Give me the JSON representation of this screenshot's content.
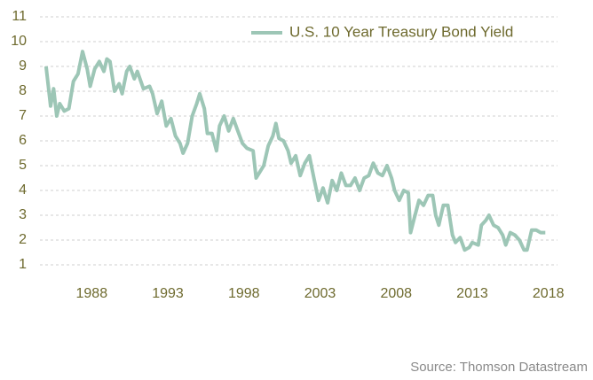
{
  "chart_data": {
    "type": "line",
    "source": "Source:  Thomson Datastream",
    "x": [
      1985.0,
      1985.3,
      1985.5,
      1985.7,
      1985.9,
      1986.2,
      1986.5,
      1986.8,
      1987.1,
      1987.4,
      1987.7,
      1987.9,
      1988.2,
      1988.5,
      1988.8,
      1989.0,
      1989.2,
      1989.5,
      1989.8,
      1990.0,
      1990.3,
      1990.5,
      1990.8,
      1991.0,
      1991.4,
      1991.8,
      1992.0,
      1992.3,
      1992.6,
      1992.9,
      1993.2,
      1993.5,
      1993.8,
      1994.0,
      1994.3,
      1994.6,
      1994.9,
      1995.1,
      1995.4,
      1995.6,
      1995.9,
      1996.2,
      1996.4,
      1996.7,
      1997.0,
      1997.3,
      1997.6,
      1997.9,
      1998.2,
      1998.6,
      1998.8,
      1999.0,
      1999.3,
      1999.6,
      1999.9,
      2000.1,
      2000.3,
      2000.6,
      2000.9,
      2001.1,
      2001.4,
      2001.7,
      2002.0,
      2002.3,
      2002.6,
      2002.9,
      2003.2,
      2003.5,
      2003.8,
      2004.1,
      2004.4,
      2004.7,
      2005.0,
      2005.3,
      2005.6,
      2005.9,
      2006.2,
      2006.5,
      2006.8,
      2007.1,
      2007.4,
      2007.7,
      2007.9,
      2008.2,
      2008.5,
      2008.8,
      2008.95,
      2009.2,
      2009.5,
      2009.8,
      2010.1,
      2010.4,
      2010.6,
      2010.8,
      2011.1,
      2011.4,
      2011.7,
      2011.9,
      2012.2,
      2012.5,
      2012.8,
      2013.0,
      2013.4,
      2013.6,
      2013.9,
      2014.1,
      2014.4,
      2014.7,
      2015.0,
      2015.2,
      2015.5,
      2015.8,
      2016.1,
      2016.4,
      2016.6,
      2016.9,
      2017.2,
      2017.5,
      2017.8
    ],
    "series": [
      {
        "name": "U.S. 10 Year Treasury Bond Yield",
        "color": "#9dc6b6",
        "values": [
          9.0,
          7.4,
          8.1,
          7.0,
          7.5,
          7.2,
          7.3,
          8.4,
          8.7,
          9.6,
          8.9,
          8.2,
          8.9,
          9.2,
          8.8,
          9.3,
          9.2,
          8.0,
          8.3,
          7.9,
          8.8,
          9.0,
          8.5,
          8.8,
          8.1,
          8.2,
          7.9,
          7.1,
          7.6,
          6.6,
          6.9,
          6.2,
          5.9,
          5.5,
          5.9,
          7.0,
          7.5,
          7.9,
          7.3,
          6.3,
          6.3,
          5.6,
          6.6,
          7.0,
          6.4,
          6.9,
          6.4,
          5.9,
          5.7,
          5.6,
          4.5,
          4.7,
          5.0,
          5.8,
          6.2,
          6.7,
          6.1,
          6.0,
          5.6,
          5.1,
          5.4,
          4.6,
          5.1,
          5.4,
          4.5,
          3.6,
          4.1,
          3.5,
          4.4,
          4.0,
          4.7,
          4.2,
          4.2,
          4.5,
          4.0,
          4.5,
          4.6,
          5.1,
          4.7,
          4.6,
          5.0,
          4.5,
          4.0,
          3.6,
          4.0,
          3.9,
          2.3,
          2.9,
          3.6,
          3.4,
          3.8,
          3.8,
          3.0,
          2.6,
          3.4,
          3.4,
          2.2,
          1.9,
          2.1,
          1.6,
          1.7,
          1.9,
          1.8,
          2.6,
          2.8,
          3.0,
          2.6,
          2.5,
          2.2,
          1.8,
          2.3,
          2.2,
          2.0,
          1.6,
          1.6,
          2.4,
          2.4,
          2.3,
          2.3
        ]
      }
    ],
    "xlim": [
      1984.6,
      2018.6
    ],
    "xticks": [
      1988,
      1993,
      1998,
      2003,
      2008,
      2013,
      2018
    ],
    "ylim": [
      0.5,
      11
    ],
    "yticks": [
      1,
      2,
      3,
      4,
      5,
      6,
      7,
      8,
      9,
      10,
      11
    ],
    "grid": true,
    "legend": "upper right"
  }
}
